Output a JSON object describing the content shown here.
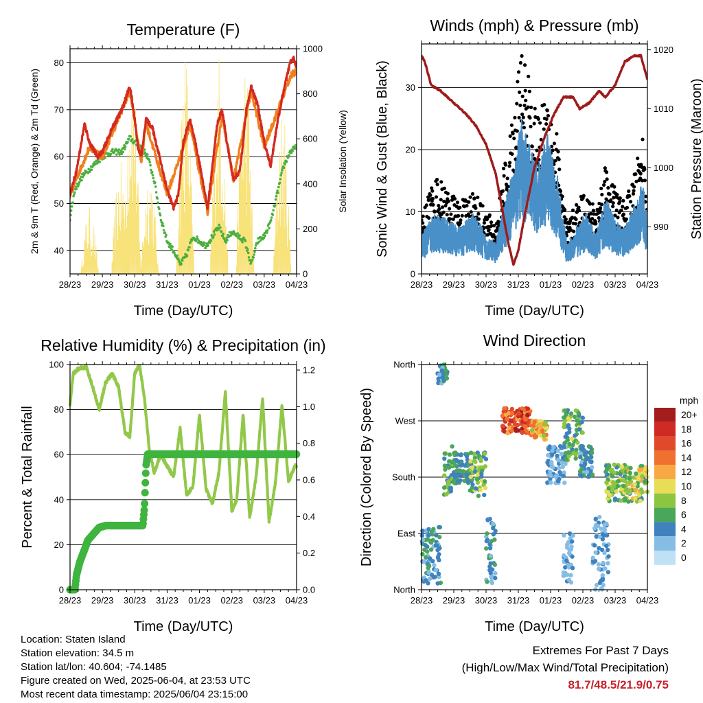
{
  "colors": {
    "temp_2m": "#d42a20",
    "temp_9m": "#f07f1e",
    "dewpoint": "#4caf3f",
    "solar": "#f8e27a",
    "wind": "#4a90c8",
    "gust": "#000000",
    "pressure": "#9e1b1b",
    "rh": "#92c84a",
    "precip": "#3fb43f",
    "extremes": "#c8202a"
  },
  "shared_x_ticks": [
    "28/23",
    "29/23",
    "30/23",
    "31/23",
    "01/23",
    "02/23",
    "03/23",
    "04/23"
  ],
  "shared_x_label": "Time (Day/UTC)",
  "chart_data": [
    {
      "id": "temperature",
      "type": "line",
      "title": "Temperature (F)",
      "xlabel": "Time (Day/UTC)",
      "ylabel": "2m & 9m T (Red, Orange) & 2m Td (Green)",
      "ylabel_right": "Solar Insolation (Yellow)",
      "x_ticks": [
        "28/23",
        "29/23",
        "30/23",
        "31/23",
        "01/23",
        "02/23",
        "03/23",
        "04/23"
      ],
      "ylim": [
        35,
        83
      ],
      "y_ticks": [
        40,
        50,
        60,
        70,
        80
      ],
      "ylim_right": [
        0,
        1000
      ],
      "y_ticks_right": [
        0,
        200,
        400,
        600,
        800,
        1000
      ],
      "grid": true,
      "series": [
        {
          "name": "2m T",
          "axis": "left",
          "color": "#d42a20",
          "x": [
            0,
            0.2,
            0.45,
            0.6,
            0.85,
            1.0,
            1.3,
            1.6,
            1.85,
            2.0,
            2.1,
            2.2,
            2.35,
            2.55,
            2.8,
            3.0,
            3.2,
            3.35,
            3.5,
            3.7,
            3.9,
            4.1,
            4.25,
            4.4,
            4.55,
            4.7,
            4.85,
            5.05,
            5.25,
            5.45,
            5.6,
            5.8,
            6.0,
            6.2,
            6.4,
            6.6,
            6.8,
            6.92,
            7.0
          ],
          "y": [
            52,
            57,
            67,
            63,
            60,
            61,
            66,
            70,
            75,
            68,
            62,
            60,
            68,
            66,
            59,
            53,
            49,
            52,
            63,
            68,
            62,
            55,
            49,
            58,
            67,
            70,
            63,
            55,
            57,
            70,
            75,
            71,
            63,
            58,
            67,
            74,
            80,
            81,
            79
          ]
        },
        {
          "name": "9m T",
          "axis": "left",
          "color": "#f07f1e",
          "x": [
            0,
            0.6,
            1.0,
            1.85,
            2.2,
            2.35,
            3.0,
            3.5,
            3.7,
            4.25,
            4.7,
            5.05,
            5.6,
            6.0,
            6.8,
            6.95,
            7.0
          ],
          "y": [
            52,
            62,
            60,
            74,
            59,
            67,
            52,
            62,
            67,
            48,
            69,
            55,
            74,
            62,
            77,
            78,
            79
          ]
        },
        {
          "name": "2m Td",
          "axis": "left",
          "color": "#4caf3f",
          "x": [
            0,
            0.15,
            0.4,
            0.7,
            1.0,
            1.3,
            1.6,
            1.85,
            2.0,
            2.2,
            2.4,
            2.6,
            2.8,
            3.0,
            3.2,
            3.4,
            3.6,
            3.8,
            4.0,
            4.2,
            4.4,
            4.6,
            4.8,
            5.0,
            5.2,
            5.4,
            5.6,
            5.8,
            6.0,
            6.2,
            6.4,
            6.6,
            6.8,
            7.0
          ],
          "y": [
            47,
            53,
            56,
            58,
            60,
            61,
            61,
            64,
            63,
            62,
            60,
            55,
            47,
            42,
            40,
            37,
            39,
            43,
            42,
            41,
            43,
            45,
            42,
            44,
            43,
            42,
            37,
            42,
            43,
            46,
            52,
            58,
            61,
            62
          ]
        },
        {
          "name": "Solar Insolation",
          "axis": "right",
          "color": "#f8e27a",
          "peaks_x": [
            0.6,
            1.55,
            1.9,
            2.45,
            3.55,
            4.6,
            5.4,
            6.55
          ],
          "peaks_y": [
            300,
            500,
            1020,
            500,
            1020,
            1000,
            1020,
            750
          ]
        }
      ]
    },
    {
      "id": "winds",
      "type": "scatter",
      "title": "Winds (mph) & Pressure (mb)",
      "xlabel": "Time (Day/UTC)",
      "ylabel": "Sonic Wind & Gust (Blue, Black)",
      "ylabel_right": "Station Pressure (Maroon)",
      "x_ticks": [
        "28/23",
        "29/23",
        "30/23",
        "31/23",
        "01/23",
        "02/23",
        "03/23",
        "04/23"
      ],
      "ylim": [
        0,
        37
      ],
      "y_ticks": [
        0,
        10,
        20,
        30
      ],
      "ylim_right": [
        982,
        1021
      ],
      "y_ticks_right": [
        990,
        1000,
        1010,
        1020
      ],
      "grid": true,
      "series": [
        {
          "name": "Gust",
          "axis": "left",
          "color": "#000000",
          "x": [
            0,
            0.4,
            0.8,
            1.2,
            1.6,
            2.0,
            2.3,
            2.5,
            2.7,
            2.9,
            3.1,
            3.3,
            3.6,
            3.9,
            4.2,
            4.5,
            4.8,
            5.1,
            5.4,
            5.7,
            6.0,
            6.3,
            6.6,
            6.85,
            7.0
          ],
          "y": [
            8,
            14,
            12,
            10,
            12,
            9,
            7,
            14,
            18,
            24,
            34,
            28,
            22,
            26,
            20,
            7,
            10,
            12,
            9,
            16,
            12,
            10,
            14,
            20,
            12
          ]
        },
        {
          "name": "Wind",
          "axis": "left",
          "color": "#4a90c8",
          "x": [
            0,
            0.4,
            0.8,
            1.2,
            1.6,
            2.0,
            2.3,
            2.5,
            2.7,
            2.9,
            3.1,
            3.3,
            3.6,
            3.9,
            4.2,
            4.5,
            4.8,
            5.1,
            5.4,
            5.7,
            6.0,
            6.3,
            6.6,
            6.85,
            7.0
          ],
          "y": [
            5,
            8,
            7,
            6,
            8,
            5,
            4,
            8,
            11,
            15,
            20,
            17,
            14,
            18,
            13,
            4,
            6,
            8,
            5,
            10,
            7,
            6,
            9,
            12,
            7
          ]
        },
        {
          "name": "Station Pressure",
          "axis": "right",
          "color": "#9e1b1b",
          "x": [
            0,
            0.1,
            0.3,
            0.6,
            1.0,
            1.4,
            1.7,
            2.0,
            2.3,
            2.5,
            2.7,
            2.85,
            3.0,
            3.2,
            3.5,
            3.8,
            4.1,
            4.4,
            4.7,
            4.9,
            5.2,
            5.5,
            5.7,
            6.0,
            6.3,
            6.6,
            6.8,
            6.95,
            7.0
          ],
          "y": [
            1019,
            1018,
            1014,
            1013,
            1011,
            1009,
            1007,
            1004,
            999,
            993,
            987,
            983.5,
            986,
            992,
            1000,
            1005,
            1009,
            1012,
            1012,
            1010,
            1011,
            1013,
            1012,
            1014,
            1018,
            1019,
            1019,
            1016,
            1015
          ]
        }
      ]
    },
    {
      "id": "humidity",
      "type": "line",
      "title": "Relative Humidity (%) & Precipitation (in)",
      "xlabel": "Time (Day/UTC)",
      "ylabel": "Percent & Total Rainfall",
      "x_ticks": [
        "28/23",
        "29/23",
        "30/23",
        "31/23",
        "01/23",
        "02/23",
        "03/23",
        "04/23"
      ],
      "ylim": [
        0,
        100
      ],
      "y_ticks": [
        0,
        20,
        40,
        60,
        80,
        100
      ],
      "ylim_right": [
        0,
        1.23
      ],
      "y_ticks_right": [
        0.0,
        0.2,
        0.4,
        0.6,
        0.8,
        1.0,
        1.2
      ],
      "grid": true,
      "series": [
        {
          "name": "Relative Humidity",
          "axis": "left",
          "color": "#92c84a",
          "x": [
            0,
            0.1,
            0.25,
            0.5,
            0.7,
            0.9,
            1.1,
            1.3,
            1.5,
            1.7,
            1.85,
            2.0,
            2.15,
            2.3,
            2.45,
            2.6,
            2.8,
            3.0,
            3.2,
            3.4,
            3.6,
            3.8,
            4.0,
            4.2,
            4.4,
            4.6,
            4.8,
            5.0,
            5.15,
            5.35,
            5.55,
            5.75,
            5.95,
            6.15,
            6.35,
            6.55,
            6.75,
            6.95,
            7.0
          ],
          "y": [
            82,
            96,
            98,
            99,
            90,
            80,
            92,
            96,
            90,
            70,
            68,
            96,
            100,
            85,
            62,
            52,
            60,
            55,
            50,
            72,
            42,
            46,
            78,
            45,
            38,
            52,
            88,
            35,
            40,
            78,
            32,
            50,
            85,
            30,
            48,
            82,
            48,
            55,
            55
          ]
        },
        {
          "name": "Total Precipitation",
          "axis": "right",
          "color": "#3fb43f",
          "x": [
            0,
            0.15,
            0.2,
            0.3,
            0.45,
            0.55,
            0.7,
            0.9,
            1.1,
            1.5,
            2.0,
            2.25,
            2.3,
            2.32,
            2.35,
            2.4,
            2.6,
            3.0,
            4.0,
            5.0,
            6.0,
            7.0
          ],
          "y": [
            0,
            0.0,
            0.08,
            0.15,
            0.22,
            0.27,
            0.3,
            0.34,
            0.35,
            0.35,
            0.35,
            0.35,
            0.45,
            0.55,
            0.68,
            0.74,
            0.74,
            0.74,
            0.74,
            0.74,
            0.74,
            0.74
          ]
        }
      ]
    },
    {
      "id": "direction",
      "type": "scatter",
      "title": "Wind Direction",
      "xlabel": "Time (Day/UTC)",
      "ylabel": "Direction (Colored By Speed)",
      "x_ticks": [
        "28/23",
        "29/23",
        "30/23",
        "31/23",
        "01/23",
        "02/23",
        "03/23",
        "04/23"
      ],
      "y_ticks": [
        "North",
        "East",
        "South",
        "West",
        "North"
      ],
      "ylim": [
        0,
        360
      ],
      "grid": true,
      "legend": {
        "title": "mph",
        "placement": "right",
        "labels": [
          "20+",
          "18",
          "16",
          "14",
          "12",
          "10",
          "8",
          "6",
          "4",
          "2",
          "0"
        ],
        "colors": [
          "#a51c1c",
          "#cf2a24",
          "#e04a2a",
          "#f07030",
          "#f9a944",
          "#e7dd57",
          "#8cc53f",
          "#4aa65a",
          "#3f82be",
          "#86bde4",
          "#bfe1f5"
        ]
      },
      "series": [
        {
          "name": "Direction",
          "clusters": [
            {
              "x": [
                0.0,
                0.6
              ],
              "dir": [
                10,
                100
              ],
              "speed": [
                2,
                6
              ]
            },
            {
              "x": [
                0.5,
                0.8
              ],
              "dir": [
                330,
                360
              ],
              "speed": [
                2,
                7
              ]
            },
            {
              "x": [
                0.7,
                1.0
              ],
              "dir": [
                150,
                230
              ],
              "speed": [
                3,
                8
              ]
            },
            {
              "x": [
                1.0,
                1.5
              ],
              "dir": [
                170,
                220
              ],
              "speed": [
                3,
                7
              ]
            },
            {
              "x": [
                1.5,
                2.0
              ],
              "dir": [
                150,
                220
              ],
              "speed": [
                4,
                10
              ]
            },
            {
              "x": [
                2.0,
                2.3
              ],
              "dir": [
                10,
                120
              ],
              "speed": [
                2,
                6
              ]
            },
            {
              "x": [
                2.5,
                3.4
              ],
              "dir": [
                250,
                290
              ],
              "speed": [
                12,
                20
              ]
            },
            {
              "x": [
                3.4,
                3.9
              ],
              "dir": [
                240,
                270
              ],
              "speed": [
                8,
                14
              ]
            },
            {
              "x": [
                3.9,
                4.5
              ],
              "dir": [
                170,
                230
              ],
              "speed": [
                1,
                5
              ]
            },
            {
              "x": [
                4.4,
                4.7
              ],
              "dir": [
                10,
                90
              ],
              "speed": [
                1,
                4
              ]
            },
            {
              "x": [
                4.4,
                5.0
              ],
              "dir": [
                200,
                290
              ],
              "speed": [
                4,
                10
              ]
            },
            {
              "x": [
                4.9,
                5.3
              ],
              "dir": [
                180,
                230
              ],
              "speed": [
                2,
                6
              ]
            },
            {
              "x": [
                5.3,
                5.8
              ],
              "dir": [
                0,
                120
              ],
              "speed": [
                1,
                4
              ]
            },
            {
              "x": [
                5.7,
                6.4
              ],
              "dir": [
                140,
                200
              ],
              "speed": [
                4,
                10
              ]
            },
            {
              "x": [
                6.4,
                7.0
              ],
              "dir": [
                140,
                200
              ],
              "speed": [
                4,
                12
              ]
            }
          ]
        }
      ]
    }
  ],
  "info": {
    "location": "Location: Staten Island",
    "elevation": "Station elevation: 34.5 m",
    "latlon": "Station lat/lon: 40.604; -74.1485",
    "created": "Figure created on Wed, 2025-06-04, at 23:53 UTC",
    "timestamp": "Most recent data timestamp: 2025/06/04 23:15:00"
  },
  "extremes": {
    "heading": "Extremes For Past 7 Days",
    "subheading": "(High/Low/Max Wind/Total Precipitation)",
    "values": "81.7/48.5/21.9/0.75"
  }
}
